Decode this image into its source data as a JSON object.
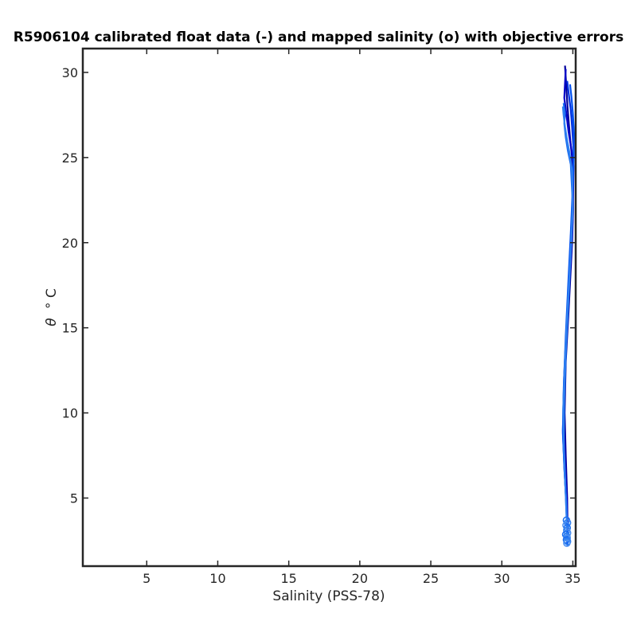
{
  "chart_data": {
    "type": "line",
    "title": "R5906104 calibrated float data (-) and mapped salinity (o) with objective errors",
    "xlabel": "Salinity (PSS-78)",
    "ylabel_symbol": "θ",
    "ylabel_unit": "° C",
    "xlim": [
      0.5,
      35.2
    ],
    "ylim": [
      1.0,
      31.4
    ],
    "xticks": [
      5,
      10,
      15,
      20,
      25,
      30,
      35
    ],
    "yticks": [
      5,
      10,
      15,
      20,
      25,
      30
    ],
    "grid": false,
    "colors": [
      "#00009a",
      "#0000c8",
      "#0030e0",
      "#0050f0",
      "#1a6ef0",
      "#2f80f0",
      "#4a8ff0"
    ],
    "series": [
      {
        "x": [
          34.45,
          34.55,
          34.62,
          34.72,
          34.82,
          34.95,
          35.02,
          34.95,
          34.7,
          34.5,
          34.42,
          34.5,
          34.6,
          34.62,
          34.65
        ],
        "y": [
          30.4,
          29.0,
          28.0,
          27.0,
          26.0,
          25.0,
          22.0,
          20.0,
          16.0,
          13.0,
          10.0,
          7.5,
          5.0,
          3.5,
          2.5
        ]
      },
      {
        "x": [
          34.5,
          34.4,
          34.55,
          34.7,
          34.9,
          35.05,
          35.0,
          34.85,
          34.6,
          34.42,
          34.35,
          34.45,
          34.58,
          34.6,
          34.62
        ],
        "y": [
          30.2,
          28.5,
          27.5,
          26.5,
          25.5,
          24.5,
          21.5,
          19.0,
          15.5,
          12.5,
          9.5,
          7.0,
          4.8,
          3.3,
          2.4
        ]
      },
      {
        "x": [
          34.6,
          34.7,
          34.85,
          34.95,
          35.05,
          35.02,
          34.9,
          34.75,
          34.55,
          34.38,
          34.3,
          34.4,
          34.55,
          34.58,
          34.6
        ],
        "y": [
          29.5,
          28.8,
          27.8,
          26.8,
          25.5,
          23.5,
          21.0,
          18.5,
          15.0,
          12.0,
          9.0,
          6.8,
          4.6,
          3.2,
          2.3
        ]
      },
      {
        "x": [
          34.8,
          34.9,
          35.0,
          35.08,
          35.06,
          34.98,
          34.85,
          34.7,
          34.5,
          34.36,
          34.3,
          34.42,
          34.55,
          34.6,
          34.62
        ],
        "y": [
          29.3,
          28.6,
          27.6,
          26.4,
          25.0,
          23.0,
          20.5,
          18.0,
          14.5,
          11.5,
          8.8,
          6.5,
          4.5,
          3.1,
          2.2
        ]
      },
      {
        "x": [
          34.35,
          34.45,
          34.4,
          34.5,
          34.65,
          34.85,
          34.98,
          34.9,
          34.72,
          34.52,
          34.4,
          34.35,
          34.48,
          34.58,
          34.6
        ],
        "y": [
          28.2,
          27.6,
          27.0,
          26.2,
          25.4,
          24.6,
          22.5,
          20.5,
          17.0,
          13.8,
          10.8,
          8.0,
          5.5,
          3.6,
          2.5
        ]
      },
      {
        "x": [
          34.3,
          34.35,
          34.45,
          34.6,
          34.78,
          34.95,
          35.0,
          34.88,
          34.65,
          34.45,
          34.32,
          34.38,
          34.5,
          34.58
        ],
        "y": [
          28.0,
          27.5,
          26.8,
          26.0,
          25.2,
          24.2,
          22.0,
          19.8,
          16.5,
          13.2,
          10.2,
          7.8,
          5.2,
          3.4
        ]
      }
    ],
    "mapped_points": {
      "x": [
        34.55,
        34.62,
        34.52,
        34.6,
        34.57,
        34.63,
        34.5,
        34.58,
        34.6,
        34.55,
        34.62,
        34.58
      ],
      "y": [
        3.7,
        3.55,
        3.4,
        3.25,
        3.1,
        2.95,
        2.85,
        2.75,
        2.65,
        2.55,
        2.45,
        2.35
      ]
    }
  }
}
